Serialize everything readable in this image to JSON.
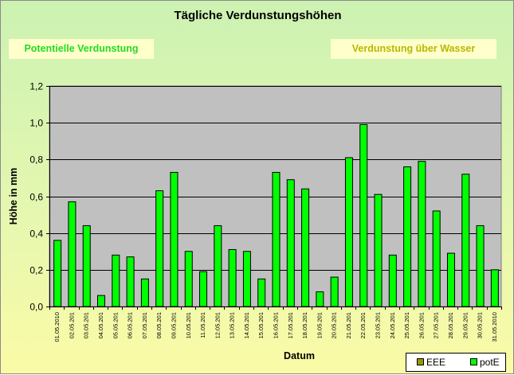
{
  "title": "Tägliche Verdunstungshöhen",
  "buttons": {
    "left": "Potentielle Verdunstung",
    "right": "Verdunstung über Wasser"
  },
  "colors": {
    "bar": "#00ff00",
    "plot_bg": "#c0c0c0",
    "eee": "#999900",
    "left_button_text": "#22dd22",
    "right_button_text": "#b8b800"
  },
  "legend": [
    {
      "name": "EEE",
      "color": "#999900"
    },
    {
      "name": "potE",
      "color": "#00ff00"
    }
  ],
  "chart_data": {
    "type": "bar",
    "title": "Tägliche Verdunstungshöhen",
    "xlabel": "Datum",
    "ylabel": "Höhe in mm",
    "ylim": [
      0,
      1.2
    ],
    "yticks": [
      "0,0",
      "0,2",
      "0,4",
      "0,6",
      "0,8",
      "1,0",
      "1,2"
    ],
    "grid": true,
    "legend_position": "bottom-right",
    "categories": [
      "01.05.2010",
      "02.05.201",
      "03.05.201",
      "04.05.201",
      "05.05.201",
      "06.05.201",
      "07.05.201",
      "08.05.201",
      "09.05.201",
      "10.05.201",
      "11.05.201",
      "12.05.201",
      "13.05.201",
      "14.05.201",
      "15.05.201",
      "16.05.201",
      "17.05.201",
      "18.05.201",
      "19.05.201",
      "20.05.201",
      "21.05.201",
      "22.05.201",
      "23.05.201",
      "24.05.201",
      "25.05.201",
      "26.05.201",
      "27.05.201",
      "28.05.201",
      "29.05.201",
      "30.05.201",
      "31.05.2010"
    ],
    "series": [
      {
        "name": "EEE",
        "values": [
          0,
          0,
          0,
          0,
          0,
          0,
          0,
          0,
          0,
          0,
          0,
          0,
          0,
          0,
          0,
          0,
          0,
          0,
          0,
          0,
          0,
          0,
          0,
          0,
          0,
          0,
          0,
          0,
          0,
          0,
          0
        ]
      },
      {
        "name": "potE",
        "values": [
          0.36,
          0.57,
          0.44,
          0.06,
          0.28,
          0.27,
          0.15,
          0.63,
          0.73,
          0.3,
          0.19,
          0.44,
          0.31,
          0.3,
          0.15,
          0.73,
          0.69,
          0.64,
          0.08,
          0.16,
          0.81,
          0.99,
          0.61,
          0.28,
          0.76,
          0.79,
          0.52,
          0.29,
          0.72,
          0.44,
          0.2
        ]
      }
    ]
  }
}
